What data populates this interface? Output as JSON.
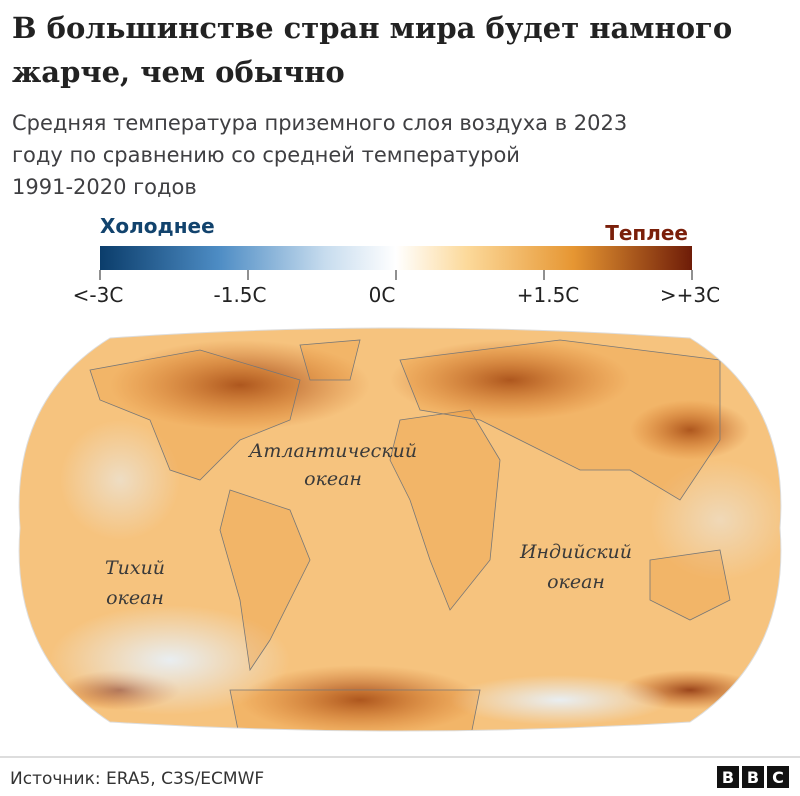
{
  "header": {
    "title": [
      "В большинстве стран мира будет намного",
      "жарче, чем обычно"
    ],
    "subtitle": [
      "Средняя температура приземного слоя воздуха в 2023",
      "году по сравнению со средней температурой",
      "1991-2020 годов"
    ]
  },
  "legend": {
    "cold": "Холоднее",
    "warm": "Теплее",
    "ticks": [
      "<-3C",
      "-1.5C",
      "0C",
      "+1.5C",
      ">+3C"
    ]
  },
  "map": {
    "labels": [
      {
        "lines": [
          "Атлантический",
          "океан"
        ]
      },
      {
        "lines": [
          "Тихий",
          "океан"
        ]
      },
      {
        "lines": [
          "Индийский",
          "океан"
        ]
      }
    ]
  },
  "footer": {
    "source": "Источник: ERA5, C3S/ECMWF",
    "logo": [
      "B",
      "B",
      "C"
    ]
  }
}
